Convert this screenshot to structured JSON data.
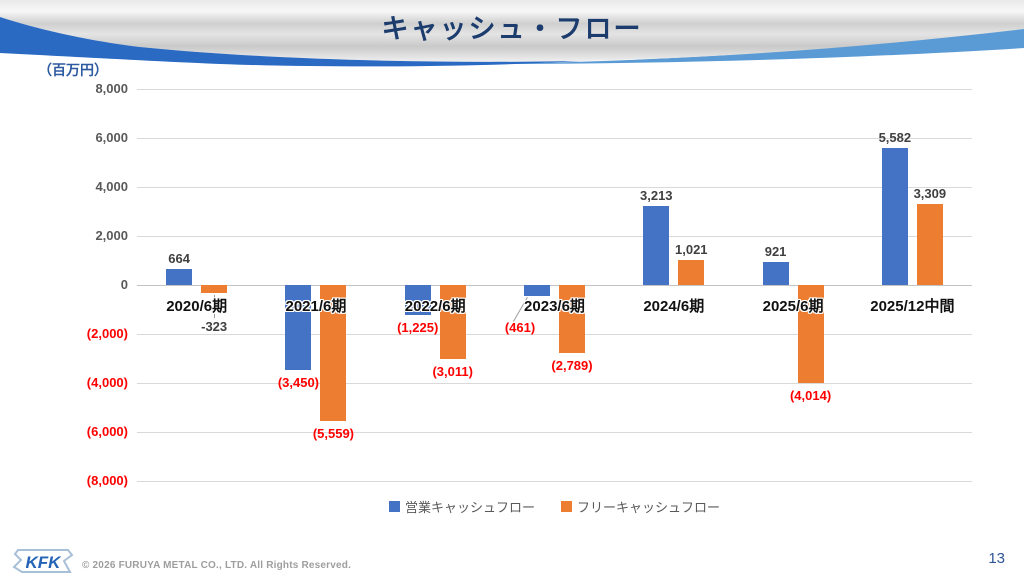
{
  "slide": {
    "title": "キャッシュ・フロー",
    "unit_label": "（百万円）",
    "page_number": "13",
    "copyright": "© 2026 FURUYA METAL CO., LTD. All Rights Reserved.",
    "logo_text": "KFK"
  },
  "colors": {
    "operating_bar": "#4472c4",
    "free_bar": "#ed7d31",
    "negative_label": "#ff0000",
    "positive_label": "#404040",
    "title_navy": "#1c3c6e",
    "header_dark_blue": "#2b6ac3",
    "header_light_blue": "#5b9bd5",
    "gridline": "#d9d9d9"
  },
  "chart_data": {
    "type": "bar",
    "title": "キャッシュ・フロー",
    "unit": "百万円",
    "categories": [
      "2020/6期",
      "2021/6期",
      "2022/6期",
      "2023/6期",
      "2024/6期",
      "2025/6期",
      "2025/12中間"
    ],
    "series": [
      {
        "name": "営業キャッシュフロー",
        "key": "operating",
        "color": "#4472c4",
        "values": [
          664,
          -3450,
          -1225,
          -461,
          3213,
          921,
          5582
        ],
        "labels": [
          "664",
          "(3,450)",
          "(1,225)",
          "(461)",
          "3,213",
          "921",
          "5,582"
        ]
      },
      {
        "name": "フリーキャッシュフロー",
        "key": "free",
        "color": "#ed7d31",
        "values": [
          -323,
          -5559,
          -3011,
          -2789,
          1021,
          -4014,
          3309
        ],
        "labels": [
          "-323",
          "(5,559)",
          "(3,011)",
          "(2,789)",
          "1,021",
          "(4,014)",
          "3,309"
        ]
      }
    ],
    "ylim": [
      -8000,
      8000
    ],
    "ytick_interval": 2000,
    "ytick_labels": [
      "8,000",
      "6,000",
      "4,000",
      "2,000",
      "0",
      "(2,000)",
      "(4,000)",
      "(6,000)",
      "(8,000)"
    ],
    "grid": true,
    "legend_position": "bottom",
    "leaders": [
      {
        "series": 1,
        "index": 0,
        "type": "vertical"
      },
      {
        "series": 0,
        "index": 3,
        "type": "diagonal"
      }
    ]
  }
}
